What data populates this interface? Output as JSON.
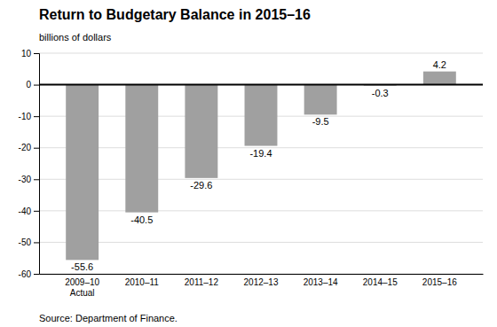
{
  "chart_data": {
    "type": "bar",
    "title": "Return to Budgetary Balance in 2015–16",
    "ylabel": "billions of dollars",
    "source": "Source: Department of Finance.",
    "categories": [
      "2009–10\nActual",
      "2010–11",
      "2011–12",
      "2012–13",
      "2013–14",
      "2014–15",
      "2015–16"
    ],
    "values": [
      -55.6,
      -40.5,
      -29.6,
      -19.4,
      -9.5,
      -0.3,
      4.2
    ],
    "color": "#a0a0a0",
    "ylim": [
      -60,
      10
    ],
    "yticks": [
      -60,
      -50,
      -40,
      -30,
      -20,
      -10,
      0,
      10
    ],
    "grid": true,
    "data_labels": true
  }
}
